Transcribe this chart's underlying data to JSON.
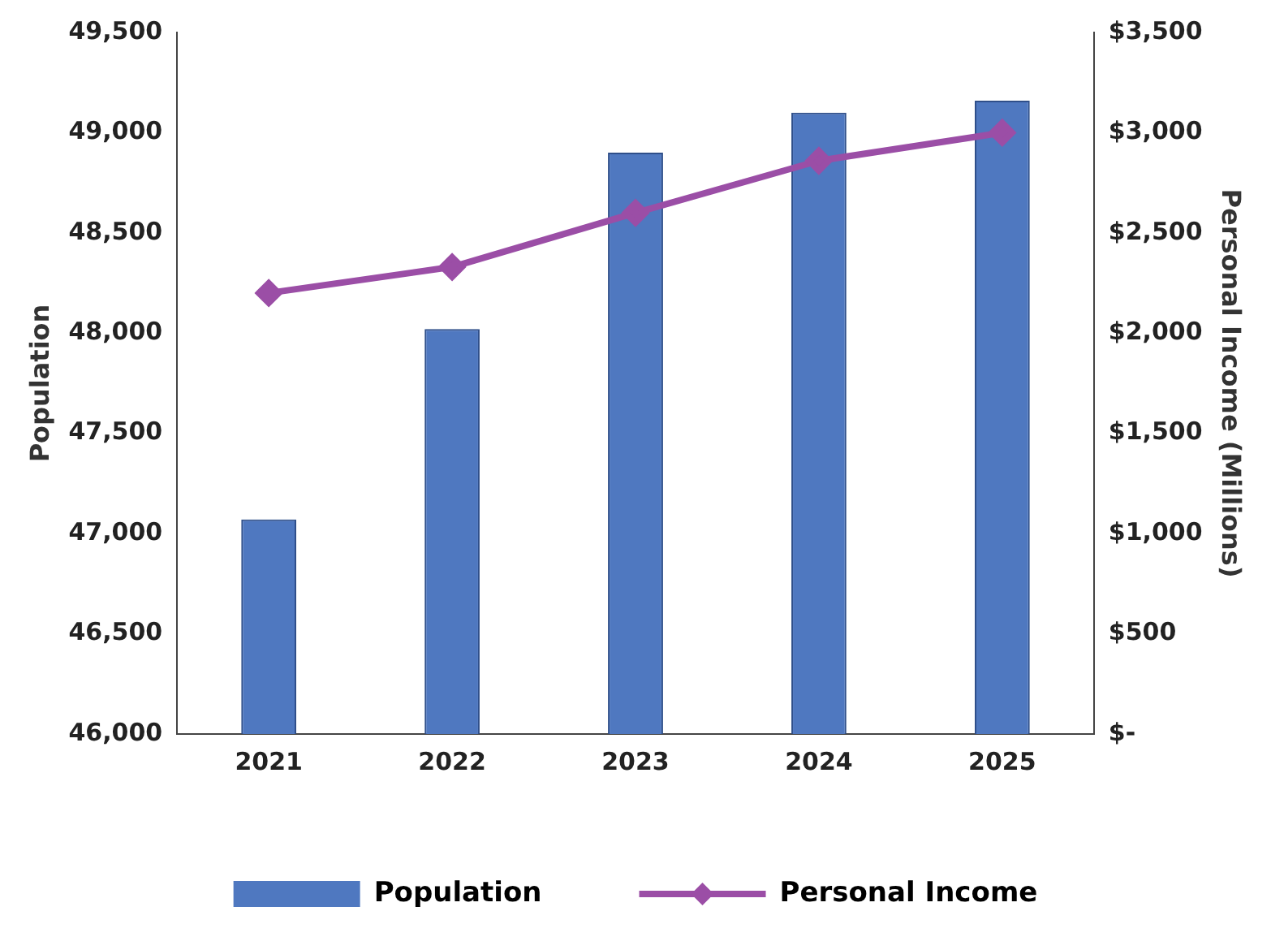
{
  "chart_data": {
    "type": "bar",
    "categories": [
      "2021",
      "2022",
      "2023",
      "2024",
      "2025"
    ],
    "ylabel": "Population",
    "y2label": "Personal Income (Millions)",
    "series": [
      {
        "name": "Population",
        "color": "#4f78c0",
        "values": [
          47070,
          48020,
          48900,
          49100,
          49160
        ]
      },
      {
        "name": "Personal Income",
        "type": "line",
        "axis": "y2",
        "color": "#9b4ea6",
        "marker": "diamond",
        "values": [
          2200,
          2330,
          2600,
          2860,
          3000
        ]
      }
    ],
    "ylim": [
      46000,
      49500
    ],
    "yticks": [
      {
        "value": 46000,
        "label": "46,000"
      },
      {
        "value": 46500,
        "label": "46,500"
      },
      {
        "value": 47000,
        "label": "47,000"
      },
      {
        "value": 47500,
        "label": "47,500"
      },
      {
        "value": 48000,
        "label": "48,000"
      },
      {
        "value": 48500,
        "label": "48,500"
      },
      {
        "value": 49000,
        "label": "49,000"
      },
      {
        "value": 49500,
        "label": "49,500"
      }
    ],
    "y2lim": [
      0,
      3500
    ],
    "y2ticks": [
      {
        "value": 0,
        "label": "$-"
      },
      {
        "value": 500,
        "label": "$500"
      },
      {
        "value": 1000,
        "label": "$1,000"
      },
      {
        "value": 1500,
        "label": "$1,500"
      },
      {
        "value": 2000,
        "label": "$2,000"
      },
      {
        "value": 2500,
        "label": "$2,500"
      },
      {
        "value": 3000,
        "label": "$3,000"
      },
      {
        "value": 3500,
        "label": "$3,500"
      }
    ],
    "grid": false,
    "legend": "bottom"
  }
}
